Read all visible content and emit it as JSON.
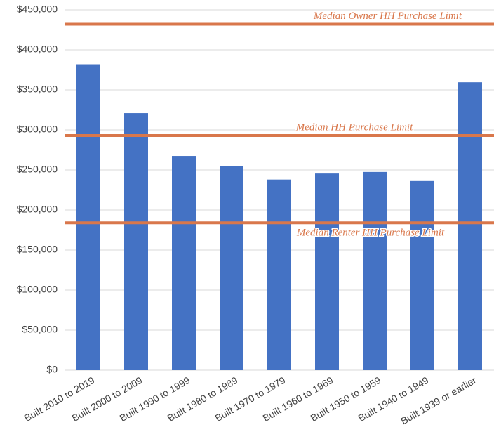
{
  "chart_data": {
    "type": "bar",
    "categories": [
      "Built 2010 to 2019",
      "Built 2000 to 2009",
      "Built 1990 to 1999",
      "Built 1980 to 1989",
      "Built 1970 to 1979",
      "Built 1960 to 1969",
      "Built 1950 to 1959",
      "Built 1940 to 1949",
      "Built 1939 or earlier"
    ],
    "values": [
      382000,
      321000,
      267500,
      254500,
      238000,
      245500,
      247500,
      237000,
      359500
    ],
    "color": "#4472c4",
    "ylim": [
      0,
      450000
    ],
    "yticks": [
      {
        "value": 0,
        "label": "$0"
      },
      {
        "value": 50000,
        "label": "$50,000"
      },
      {
        "value": 100000,
        "label": "$100,000"
      },
      {
        "value": 150000,
        "label": "$150,000"
      },
      {
        "value": 200000,
        "label": "$200,000"
      },
      {
        "value": 250000,
        "label": "$250,000"
      },
      {
        "value": 300000,
        "label": "$300,000"
      },
      {
        "value": 350000,
        "label": "$350,000"
      },
      {
        "value": 400000,
        "label": "$400,000"
      },
      {
        "value": 450000,
        "label": "$450,000"
      }
    ],
    "grid": true,
    "reference_lines": [
      {
        "name": "Median Owner HH Purchase Limit",
        "value": 432000,
        "color": "#d9774b"
      },
      {
        "name": "Median HH Purchase Limit",
        "value": 293000,
        "color": "#d9774b"
      },
      {
        "name": "Median Renter HH Purchase Limit",
        "value": 184000,
        "color": "#d9774b"
      }
    ]
  }
}
